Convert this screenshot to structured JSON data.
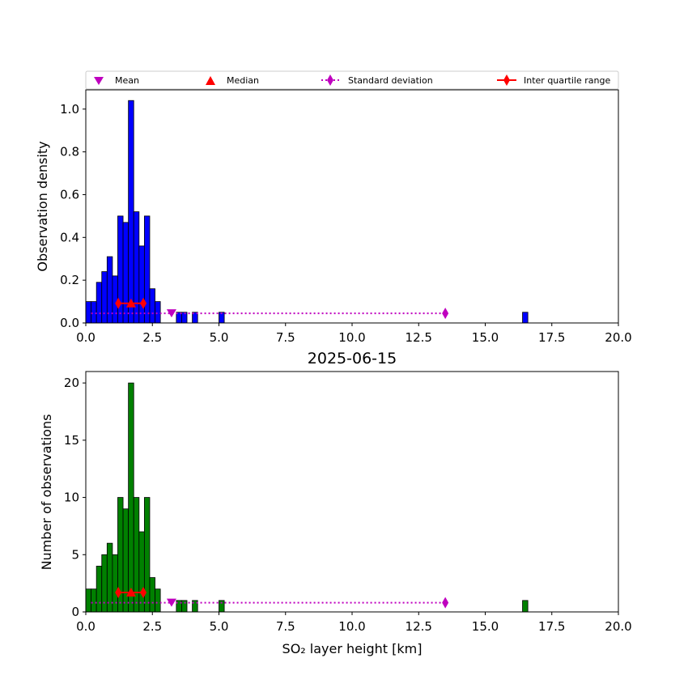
{
  "legend": {
    "mean": "Mean",
    "median": "Median",
    "std": "Standard deviation",
    "iqr": "Inter quartile range"
  },
  "colors": {
    "density_bar": "#0000ff",
    "count_bar": "#008000",
    "mean_marker": "#bf00bf",
    "median_marker": "#ff0000",
    "std_marker": "#bf00bf",
    "iqr_marker": "#ff0000"
  },
  "chart_data": [
    {
      "type": "bar",
      "title": "",
      "xlabel": "",
      "ylabel": "Observation density",
      "xlim": [
        0,
        20
      ],
      "ylim": [
        0,
        1.09
      ],
      "xticks": [
        0,
        2.5,
        5,
        7.5,
        10,
        12.5,
        15,
        17.5,
        20
      ],
      "xtick_labels": [
        "0.0",
        "2.5",
        "5.0",
        "7.5",
        "10.0",
        "12.5",
        "15.0",
        "17.5",
        "20.0"
      ],
      "yticks": [
        0,
        0.2,
        0.4,
        0.6,
        0.8,
        1.0
      ],
      "ytick_labels": [
        "0.0",
        "0.2",
        "0.4",
        "0.6",
        "0.8",
        "1.0"
      ],
      "bin_width": 0.2,
      "bins": [
        {
          "x": 0.0,
          "y": 0.1
        },
        {
          "x": 0.2,
          "y": 0.1
        },
        {
          "x": 0.4,
          "y": 0.19
        },
        {
          "x": 0.6,
          "y": 0.24
        },
        {
          "x": 0.8,
          "y": 0.31
        },
        {
          "x": 1.0,
          "y": 0.22
        },
        {
          "x": 1.2,
          "y": 0.5
        },
        {
          "x": 1.4,
          "y": 0.47
        },
        {
          "x": 1.6,
          "y": 1.04
        },
        {
          "x": 1.8,
          "y": 0.52
        },
        {
          "x": 2.0,
          "y": 0.36
        },
        {
          "x": 2.2,
          "y": 0.5
        },
        {
          "x": 2.4,
          "y": 0.16
        },
        {
          "x": 2.6,
          "y": 0.1
        },
        {
          "x": 3.4,
          "y": 0.05
        },
        {
          "x": 3.6,
          "y": 0.05
        },
        {
          "x": 4.0,
          "y": 0.05
        },
        {
          "x": 5.0,
          "y": 0.05
        },
        {
          "x": 16.4,
          "y": 0.05
        }
      ],
      "stats": {
        "marker_y": 0.045,
        "stat_y": 0.092,
        "mean": 3.22,
        "median": 1.7,
        "iqr": [
          1.22,
          2.16
        ],
        "std_range": [
          0.2,
          13.5
        ]
      }
    },
    {
      "type": "bar",
      "title": "2025-06-15",
      "xlabel": "SO₂ layer height [km]",
      "ylabel": "Number of observations",
      "xlim": [
        0,
        20
      ],
      "ylim": [
        0,
        21
      ],
      "xticks": [
        0,
        2.5,
        5,
        7.5,
        10,
        12.5,
        15,
        17.5,
        20
      ],
      "xtick_labels": [
        "0.0",
        "2.5",
        "5.0",
        "7.5",
        "10.0",
        "12.5",
        "15.0",
        "17.5",
        "20.0"
      ],
      "yticks": [
        0,
        5,
        10,
        15,
        20
      ],
      "ytick_labels": [
        "0",
        "5",
        "10",
        "15",
        "20"
      ],
      "bin_width": 0.2,
      "bins": [
        {
          "x": 0.0,
          "y": 2
        },
        {
          "x": 0.2,
          "y": 2
        },
        {
          "x": 0.4,
          "y": 4
        },
        {
          "x": 0.6,
          "y": 5
        },
        {
          "x": 0.8,
          "y": 6
        },
        {
          "x": 1.0,
          "y": 5
        },
        {
          "x": 1.2,
          "y": 10
        },
        {
          "x": 1.4,
          "y": 9
        },
        {
          "x": 1.6,
          "y": 20
        },
        {
          "x": 1.8,
          "y": 10
        },
        {
          "x": 2.0,
          "y": 7
        },
        {
          "x": 2.2,
          "y": 10
        },
        {
          "x": 2.4,
          "y": 3
        },
        {
          "x": 2.6,
          "y": 2
        },
        {
          "x": 3.4,
          "y": 1
        },
        {
          "x": 3.6,
          "y": 1
        },
        {
          "x": 4.0,
          "y": 1
        },
        {
          "x": 5.0,
          "y": 1
        },
        {
          "x": 16.4,
          "y": 1
        }
      ],
      "stats": {
        "marker_y": 0.8,
        "stat_y": 1.7,
        "mean": 3.22,
        "median": 1.7,
        "iqr": [
          1.22,
          2.16
        ],
        "std_range": [
          0.2,
          13.5
        ]
      }
    }
  ]
}
